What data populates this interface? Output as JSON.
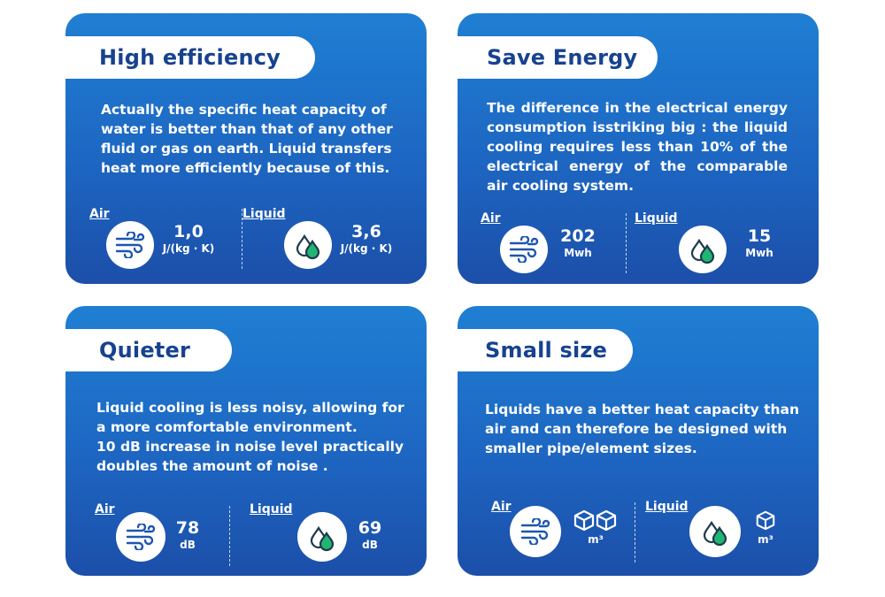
{
  "cards": [
    {
      "title": "High efficiency",
      "lines": [
        "Actually the specific heat capacity of",
        "water is better than that of any other",
        "fluid or gas on earth. Liquid transfers",
        "heat more efficiently because of this."
      ],
      "air": {
        "label": "Air",
        "value": "1,0",
        "unit": "J/(kg · K)"
      },
      "liquid": {
        "label": "Liquid",
        "value": "3,6",
        "unit": "J/(kg · K)"
      }
    },
    {
      "title": "Save Energy",
      "lines": [
        "The difference in the electrical energy consumption isstriking big : the liquid cooling requires less than 10% of the electrical energy of the comparable air cooling system."
      ],
      "air": {
        "label": "Air",
        "value": "202",
        "unit": "Mwh"
      },
      "liquid": {
        "label": "Liquid",
        "value": "15",
        "unit": "Mwh"
      }
    },
    {
      "title": "Quieter",
      "lines": [
        "Liquid cooling is less noisy, allowing for",
        "a more comfortable environment.",
        "10 dB increase in noise level practically",
        "doubles the amount of noise ."
      ],
      "air": {
        "label": "Air",
        "value": "78",
        "unit": "dB"
      },
      "liquid": {
        "label": "Liquid",
        "value": "69",
        "unit": "dB"
      }
    },
    {
      "title": "Small size",
      "lines": [
        "Liquids have a better heat capacity than",
        "air and can therefore be designed with",
        "smaller pipe/element sizes."
      ],
      "air": {
        "label": "Air",
        "unit": "m³"
      },
      "liquid": {
        "label": "Liquid",
        "unit": "m³"
      }
    }
  ],
  "colors": {
    "card_top": "#1f7fd3",
    "card_bottom": "#1c4fa9",
    "title": "#17428f",
    "liquid_green": "#21b573"
  },
  "icons": {
    "air": "wind-icon",
    "liquid": "droplets-icon",
    "size": "cube-icon"
  }
}
